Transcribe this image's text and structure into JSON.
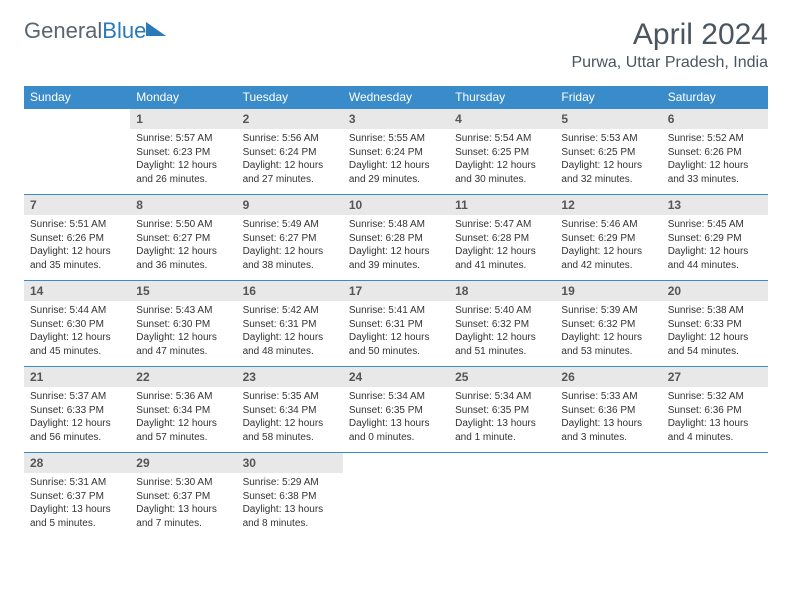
{
  "logo": {
    "part1": "General",
    "part2": "Blue"
  },
  "title": "April 2024",
  "location": "Purwa, Uttar Pradesh, India",
  "weekdays": [
    "Sunday",
    "Monday",
    "Tuesday",
    "Wednesday",
    "Thursday",
    "Friday",
    "Saturday"
  ],
  "colors": {
    "header_bg": "#3a8bc9",
    "header_fg": "#ffffff",
    "daynum_bg": "#e8e8e8",
    "rule": "#3a8bc9",
    "logo_gray": "#5a6570",
    "logo_blue": "#2a7ab8"
  },
  "layout": {
    "cols": 7,
    "rows": 5,
    "start_col": 1
  },
  "weeks": [
    [
      null,
      {
        "n": "1",
        "sr": "5:57 AM",
        "ss": "6:23 PM",
        "dl": "12 hours and 26 minutes."
      },
      {
        "n": "2",
        "sr": "5:56 AM",
        "ss": "6:24 PM",
        "dl": "12 hours and 27 minutes."
      },
      {
        "n": "3",
        "sr": "5:55 AM",
        "ss": "6:24 PM",
        "dl": "12 hours and 29 minutes."
      },
      {
        "n": "4",
        "sr": "5:54 AM",
        "ss": "6:25 PM",
        "dl": "12 hours and 30 minutes."
      },
      {
        "n": "5",
        "sr": "5:53 AM",
        "ss": "6:25 PM",
        "dl": "12 hours and 32 minutes."
      },
      {
        "n": "6",
        "sr": "5:52 AM",
        "ss": "6:26 PM",
        "dl": "12 hours and 33 minutes."
      }
    ],
    [
      {
        "n": "7",
        "sr": "5:51 AM",
        "ss": "6:26 PM",
        "dl": "12 hours and 35 minutes."
      },
      {
        "n": "8",
        "sr": "5:50 AM",
        "ss": "6:27 PM",
        "dl": "12 hours and 36 minutes."
      },
      {
        "n": "9",
        "sr": "5:49 AM",
        "ss": "6:27 PM",
        "dl": "12 hours and 38 minutes."
      },
      {
        "n": "10",
        "sr": "5:48 AM",
        "ss": "6:28 PM",
        "dl": "12 hours and 39 minutes."
      },
      {
        "n": "11",
        "sr": "5:47 AM",
        "ss": "6:28 PM",
        "dl": "12 hours and 41 minutes."
      },
      {
        "n": "12",
        "sr": "5:46 AM",
        "ss": "6:29 PM",
        "dl": "12 hours and 42 minutes."
      },
      {
        "n": "13",
        "sr": "5:45 AM",
        "ss": "6:29 PM",
        "dl": "12 hours and 44 minutes."
      }
    ],
    [
      {
        "n": "14",
        "sr": "5:44 AM",
        "ss": "6:30 PM",
        "dl": "12 hours and 45 minutes."
      },
      {
        "n": "15",
        "sr": "5:43 AM",
        "ss": "6:30 PM",
        "dl": "12 hours and 47 minutes."
      },
      {
        "n": "16",
        "sr": "5:42 AM",
        "ss": "6:31 PM",
        "dl": "12 hours and 48 minutes."
      },
      {
        "n": "17",
        "sr": "5:41 AM",
        "ss": "6:31 PM",
        "dl": "12 hours and 50 minutes."
      },
      {
        "n": "18",
        "sr": "5:40 AM",
        "ss": "6:32 PM",
        "dl": "12 hours and 51 minutes."
      },
      {
        "n": "19",
        "sr": "5:39 AM",
        "ss": "6:32 PM",
        "dl": "12 hours and 53 minutes."
      },
      {
        "n": "20",
        "sr": "5:38 AM",
        "ss": "6:33 PM",
        "dl": "12 hours and 54 minutes."
      }
    ],
    [
      {
        "n": "21",
        "sr": "5:37 AM",
        "ss": "6:33 PM",
        "dl": "12 hours and 56 minutes."
      },
      {
        "n": "22",
        "sr": "5:36 AM",
        "ss": "6:34 PM",
        "dl": "12 hours and 57 minutes."
      },
      {
        "n": "23",
        "sr": "5:35 AM",
        "ss": "6:34 PM",
        "dl": "12 hours and 58 minutes."
      },
      {
        "n": "24",
        "sr": "5:34 AM",
        "ss": "6:35 PM",
        "dl": "13 hours and 0 minutes."
      },
      {
        "n": "25",
        "sr": "5:34 AM",
        "ss": "6:35 PM",
        "dl": "13 hours and 1 minute."
      },
      {
        "n": "26",
        "sr": "5:33 AM",
        "ss": "6:36 PM",
        "dl": "13 hours and 3 minutes."
      },
      {
        "n": "27",
        "sr": "5:32 AM",
        "ss": "6:36 PM",
        "dl": "13 hours and 4 minutes."
      }
    ],
    [
      {
        "n": "28",
        "sr": "5:31 AM",
        "ss": "6:37 PM",
        "dl": "13 hours and 5 minutes."
      },
      {
        "n": "29",
        "sr": "5:30 AM",
        "ss": "6:37 PM",
        "dl": "13 hours and 7 minutes."
      },
      {
        "n": "30",
        "sr": "5:29 AM",
        "ss": "6:38 PM",
        "dl": "13 hours and 8 minutes."
      },
      null,
      null,
      null,
      null
    ]
  ],
  "labels": {
    "sunrise": "Sunrise:",
    "sunset": "Sunset:",
    "daylight": "Daylight:"
  }
}
